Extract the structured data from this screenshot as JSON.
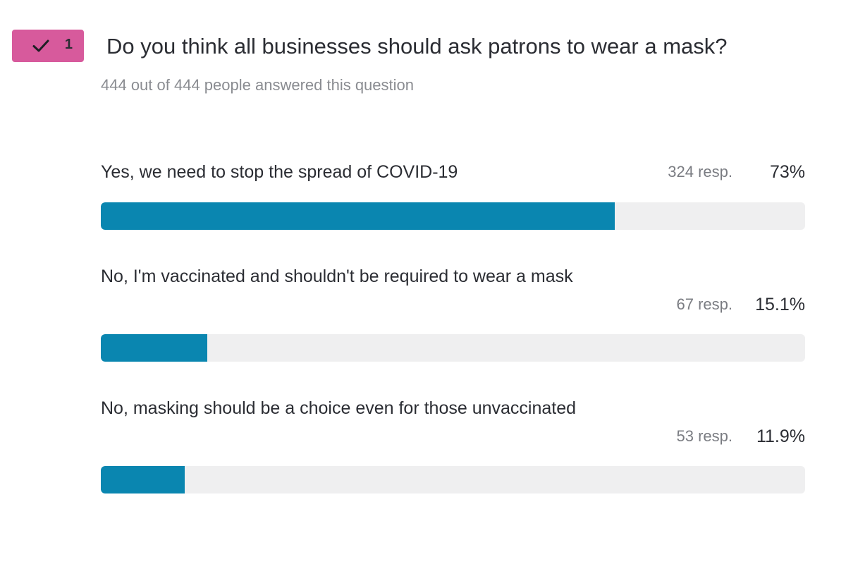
{
  "question": {
    "number": "1",
    "status_icon": "checkmark-icon",
    "badge_color": "#d75a9c",
    "title": "Do you think all businesses should ask patrons to wear a mask?",
    "answered_text": "444 out of 444 people answered this question"
  },
  "options": [
    {
      "label": "Yes, we need to stop the spread of COVID-19",
      "responses": "324 resp.",
      "percent_text": "73%",
      "percent": 73
    },
    {
      "label": "No, I'm vaccinated and shouldn't be required to wear a mask",
      "responses": "67 resp.",
      "percent_text": "15.1%",
      "percent": 15.1
    },
    {
      "label": "No, masking should be a choice even for those unvaccinated",
      "responses": "53 resp.",
      "percent_text": "11.9%",
      "percent": 11.9
    }
  ],
  "colors": {
    "bar_fill": "#0a86b0",
    "bar_track": "#efeff0"
  }
}
